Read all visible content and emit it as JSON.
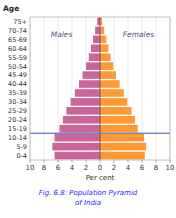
{
  "chart_data": {
    "type": "pyramid",
    "orientation": "horizontal",
    "title": "Fig. 6.8: Population Pyramid",
    "subtitle": "of India",
    "x_label": "Per cent",
    "y_label": "Age",
    "categories": [
      "0-4",
      "5-9",
      "10-14",
      "15-19",
      "20-24",
      "25-29",
      "30-34",
      "35-39",
      "40-44",
      "45-49",
      "50-54",
      "55-59",
      "60-64",
      "65-69",
      "70-74",
      "75+"
    ],
    "series": [
      {
        "name": "Males",
        "color": "#cc6699",
        "values": [
          6.5,
          6.8,
          6.5,
          5.8,
          5.3,
          4.8,
          4.2,
          3.6,
          3.0,
          2.5,
          2.0,
          1.6,
          1.3,
          1.0,
          0.7,
          0.4
        ]
      },
      {
        "name": "Females",
        "color": "#ff9933",
        "values": [
          6.4,
          6.6,
          6.3,
          5.4,
          5.0,
          4.5,
          3.9,
          3.4,
          2.8,
          2.3,
          1.9,
          1.5,
          1.2,
          0.9,
          0.6,
          0.3
        ]
      }
    ],
    "xlim": [
      0,
      10
    ],
    "xticks": [
      0,
      2,
      4,
      6,
      8,
      10
    ],
    "grid": true,
    "annotations": [
      {
        "type": "line",
        "after_category": "10-14",
        "color": "#3355bb"
      }
    ]
  }
}
